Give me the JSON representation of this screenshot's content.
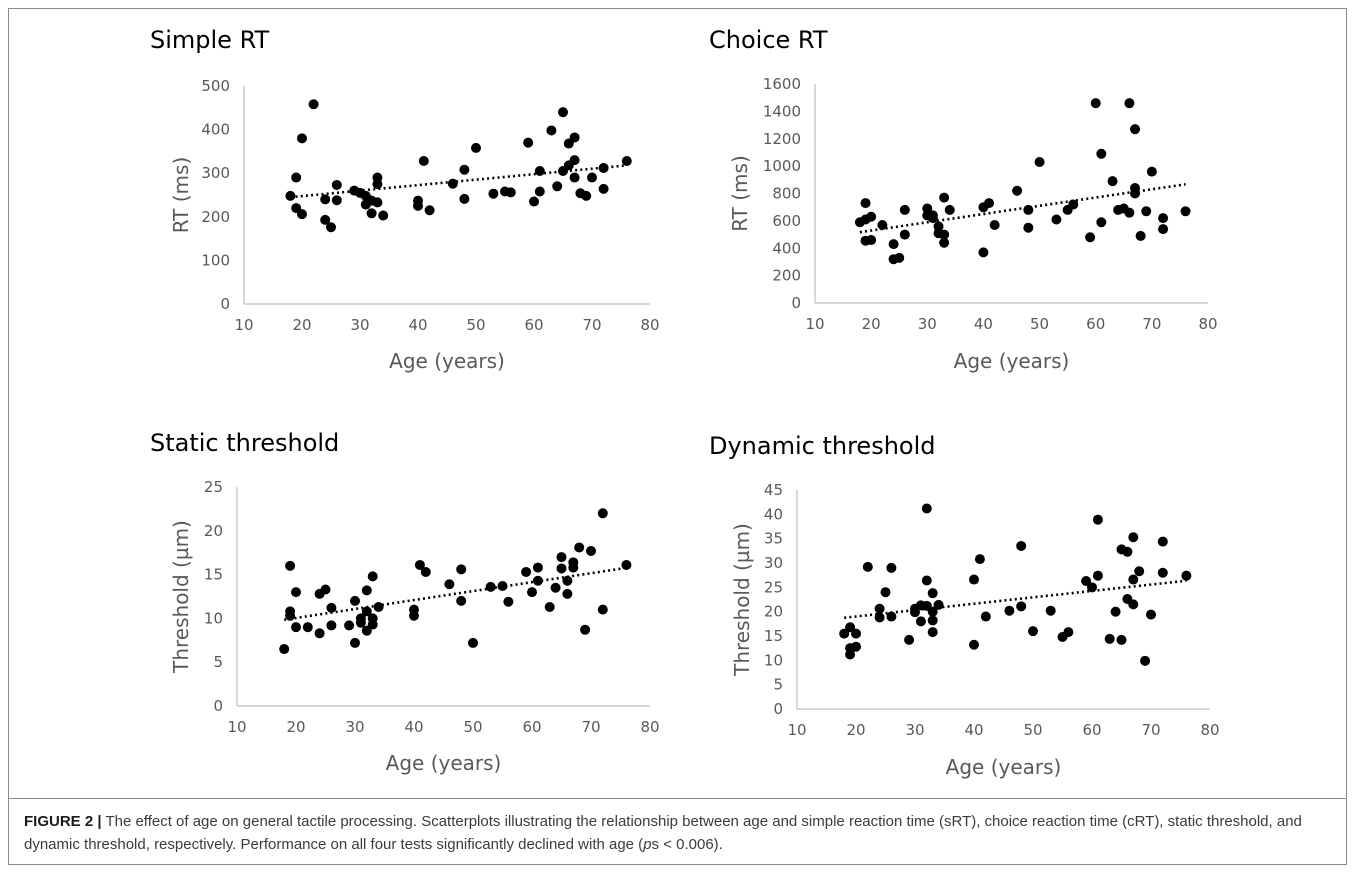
{
  "chart_data": [
    {
      "type": "scatter",
      "title": "Simple RT",
      "xlabel": "Age (years)",
      "ylabel": "RT (ms)",
      "xlim": [
        10,
        80
      ],
      "ylim": [
        0,
        500
      ],
      "xticks": [
        "10",
        "20",
        "30",
        "40",
        "50",
        "60",
        "70",
        "80"
      ],
      "yticks": [
        "0",
        "100",
        "200",
        "300",
        "400",
        "500"
      ],
      "trendline": "linear, dotted",
      "points": [
        [
          18,
          248
        ],
        [
          19,
          290
        ],
        [
          19,
          220
        ],
        [
          20,
          380
        ],
        [
          20,
          206
        ],
        [
          22,
          458
        ],
        [
          24,
          193
        ],
        [
          24,
          240
        ],
        [
          25,
          176
        ],
        [
          26,
          238
        ],
        [
          26,
          273
        ],
        [
          29,
          260
        ],
        [
          30,
          255
        ],
        [
          31,
          228
        ],
        [
          31,
          248
        ],
        [
          32,
          208
        ],
        [
          32,
          237
        ],
        [
          33,
          233
        ],
        [
          33,
          275
        ],
        [
          33,
          290
        ],
        [
          34,
          203
        ],
        [
          40,
          237
        ],
        [
          40,
          225
        ],
        [
          41,
          328
        ],
        [
          42,
          215
        ],
        [
          46,
          276
        ],
        [
          48,
          308
        ],
        [
          48,
          241
        ],
        [
          50,
          358
        ],
        [
          53,
          253
        ],
        [
          55,
          258
        ],
        [
          56,
          256
        ],
        [
          59,
          370
        ],
        [
          60,
          235
        ],
        [
          61,
          305
        ],
        [
          61,
          258
        ],
        [
          63,
          398
        ],
        [
          64,
          270
        ],
        [
          65,
          440
        ],
        [
          65,
          305
        ],
        [
          66,
          368
        ],
        [
          66,
          318
        ],
        [
          67,
          330
        ],
        [
          67,
          382
        ],
        [
          67,
          290
        ],
        [
          68,
          254
        ],
        [
          69,
          248
        ],
        [
          70,
          290
        ],
        [
          72,
          264
        ],
        [
          72,
          312
        ],
        [
          76,
          328
        ]
      ]
    },
    {
      "type": "scatter",
      "title": "Choice RT",
      "xlabel": "Age (years)",
      "ylabel": "RT (ms)",
      "xlim": [
        10,
        80
      ],
      "ylim": [
        0,
        1600
      ],
      "xticks": [
        "10",
        "20",
        "30",
        "40",
        "50",
        "60",
        "70",
        "80"
      ],
      "yticks": [
        "0",
        "200",
        "400",
        "600",
        "800",
        "1000",
        "1200",
        "1400",
        "1600"
      ],
      "trendline": "linear, dotted",
      "points": [
        [
          18,
          590
        ],
        [
          19,
          610
        ],
        [
          19,
          730
        ],
        [
          19,
          455
        ],
        [
          20,
          630
        ],
        [
          20,
          460
        ],
        [
          22,
          570
        ],
        [
          24,
          320
        ],
        [
          24,
          430
        ],
        [
          25,
          330
        ],
        [
          26,
          680
        ],
        [
          26,
          500
        ],
        [
          30,
          640
        ],
        [
          30,
          690
        ],
        [
          31,
          620
        ],
        [
          31,
          640
        ],
        [
          32,
          510
        ],
        [
          32,
          560
        ],
        [
          33,
          440
        ],
        [
          33,
          500
        ],
        [
          33,
          770
        ],
        [
          34,
          680
        ],
        [
          40,
          370
        ],
        [
          40,
          700
        ],
        [
          41,
          730
        ],
        [
          42,
          570
        ],
        [
          46,
          820
        ],
        [
          48,
          680
        ],
        [
          48,
          550
        ],
        [
          50,
          1030
        ],
        [
          53,
          610
        ],
        [
          55,
          680
        ],
        [
          56,
          720
        ],
        [
          59,
          480
        ],
        [
          60,
          1460
        ],
        [
          61,
          1090
        ],
        [
          61,
          590
        ],
        [
          63,
          890
        ],
        [
          64,
          680
        ],
        [
          65,
          690
        ],
        [
          66,
          1460
        ],
        [
          66,
          660
        ],
        [
          67,
          800
        ],
        [
          67,
          1270
        ],
        [
          67,
          840
        ],
        [
          68,
          490
        ],
        [
          69,
          670
        ],
        [
          70,
          960
        ],
        [
          72,
          620
        ],
        [
          72,
          540
        ],
        [
          76,
          670
        ]
      ]
    },
    {
      "type": "scatter",
      "title": "Static threshold",
      "xlabel": "Age (years)",
      "ylabel": "Threshold (µm)",
      "xlim": [
        10,
        80
      ],
      "ylim": [
        0,
        25
      ],
      "xticks": [
        "10",
        "20",
        "30",
        "40",
        "50",
        "60",
        "70",
        "80"
      ],
      "yticks": [
        "0",
        "5",
        "10",
        "15",
        "20",
        "25"
      ],
      "trendline": "linear, dotted",
      "points": [
        [
          18,
          6.5
        ],
        [
          19,
          16.0
        ],
        [
          19,
          10.8
        ],
        [
          19,
          10.3
        ],
        [
          20,
          13.0
        ],
        [
          20,
          9.0
        ],
        [
          22,
          9.0
        ],
        [
          24,
          12.8
        ],
        [
          24,
          8.3
        ],
        [
          25,
          13.3
        ],
        [
          26,
          11.2
        ],
        [
          26,
          9.2
        ],
        [
          29,
          9.2
        ],
        [
          30,
          12.0
        ],
        [
          30,
          7.2
        ],
        [
          31,
          9.5
        ],
        [
          31,
          10.0
        ],
        [
          32,
          10.8
        ],
        [
          32,
          13.2
        ],
        [
          32,
          8.6
        ],
        [
          33,
          14.8
        ],
        [
          33,
          10.0
        ],
        [
          33,
          9.3
        ],
        [
          34,
          11.3
        ],
        [
          40,
          11.0
        ],
        [
          40,
          10.3
        ],
        [
          41,
          16.1
        ],
        [
          42,
          15.3
        ],
        [
          46,
          13.9
        ],
        [
          48,
          15.6
        ],
        [
          48,
          12.0
        ],
        [
          50,
          7.2
        ],
        [
          53,
          13.6
        ],
        [
          55,
          13.7
        ],
        [
          56,
          11.9
        ],
        [
          59,
          15.3
        ],
        [
          60,
          13.0
        ],
        [
          61,
          15.8
        ],
        [
          61,
          14.3
        ],
        [
          63,
          11.3
        ],
        [
          64,
          13.5
        ],
        [
          65,
          17.0
        ],
        [
          65,
          15.7
        ],
        [
          66,
          14.3
        ],
        [
          66,
          12.8
        ],
        [
          67,
          16.4
        ],
        [
          67,
          15.8
        ],
        [
          68,
          18.1
        ],
        [
          69,
          8.7
        ],
        [
          70,
          17.7
        ],
        [
          72,
          22.0
        ],
        [
          72,
          11.0
        ],
        [
          76,
          16.1
        ]
      ]
    },
    {
      "type": "scatter",
      "title": "Dynamic threshold",
      "xlabel": "Age (years)",
      "ylabel": "Threshold (µm)",
      "xlim": [
        10,
        80
      ],
      "ylim": [
        0,
        45
      ],
      "xticks": [
        "10",
        "20",
        "30",
        "40",
        "50",
        "60",
        "70",
        "80"
      ],
      "yticks": [
        "0",
        "5",
        "10",
        "15",
        "20",
        "25",
        "30",
        "35",
        "40",
        "45"
      ],
      "trendline": "linear, dotted",
      "points": [
        [
          18,
          15.5
        ],
        [
          19,
          16.8
        ],
        [
          19,
          12.5
        ],
        [
          19,
          11.2
        ],
        [
          20,
          15.5
        ],
        [
          20,
          12.8
        ],
        [
          22,
          29.2
        ],
        [
          24,
          20.6
        ],
        [
          24,
          18.8
        ],
        [
          25,
          24.0
        ],
        [
          26,
          29.0
        ],
        [
          26,
          19.0
        ],
        [
          29,
          14.2
        ],
        [
          30,
          19.9
        ],
        [
          30,
          20.6
        ],
        [
          31,
          21.3
        ],
        [
          31,
          18.0
        ],
        [
          32,
          26.4
        ],
        [
          32,
          41.2
        ],
        [
          32,
          21.2
        ],
        [
          33,
          23.8
        ],
        [
          33,
          18.2
        ],
        [
          33,
          15.8
        ],
        [
          33,
          20.0
        ],
        [
          34,
          21.4
        ],
        [
          40,
          26.6
        ],
        [
          40,
          13.2
        ],
        [
          41,
          30.8
        ],
        [
          42,
          19.0
        ],
        [
          46,
          20.2
        ],
        [
          48,
          33.5
        ],
        [
          48,
          21.1
        ],
        [
          50,
          16.0
        ],
        [
          53,
          20.2
        ],
        [
          55,
          14.8
        ],
        [
          56,
          15.8
        ],
        [
          59,
          26.3
        ],
        [
          60,
          25.0
        ],
        [
          61,
          38.9
        ],
        [
          61,
          27.4
        ],
        [
          63,
          14.4
        ],
        [
          64,
          20.0
        ],
        [
          65,
          14.2
        ],
        [
          65,
          32.8
        ],
        [
          66,
          32.3
        ],
        [
          66,
          22.6
        ],
        [
          67,
          35.3
        ],
        [
          67,
          26.6
        ],
        [
          67,
          21.5
        ],
        [
          68,
          28.3
        ],
        [
          69,
          9.9
        ],
        [
          70,
          19.4
        ],
        [
          72,
          34.4
        ],
        [
          72,
          28.0
        ],
        [
          76,
          27.4
        ]
      ]
    }
  ],
  "caption": {
    "label": "FIGURE 2 |",
    "text": " The effect of age on general tactile processing. Scatterplots illustrating the relationship between age and simple reaction time (sRT), choice reaction time (cRT), static threshold, and dynamic threshold, respectively. Performance on all four tests significantly declined with age (",
    "italic": "p",
    "after_italic": "s < 0.006)."
  }
}
